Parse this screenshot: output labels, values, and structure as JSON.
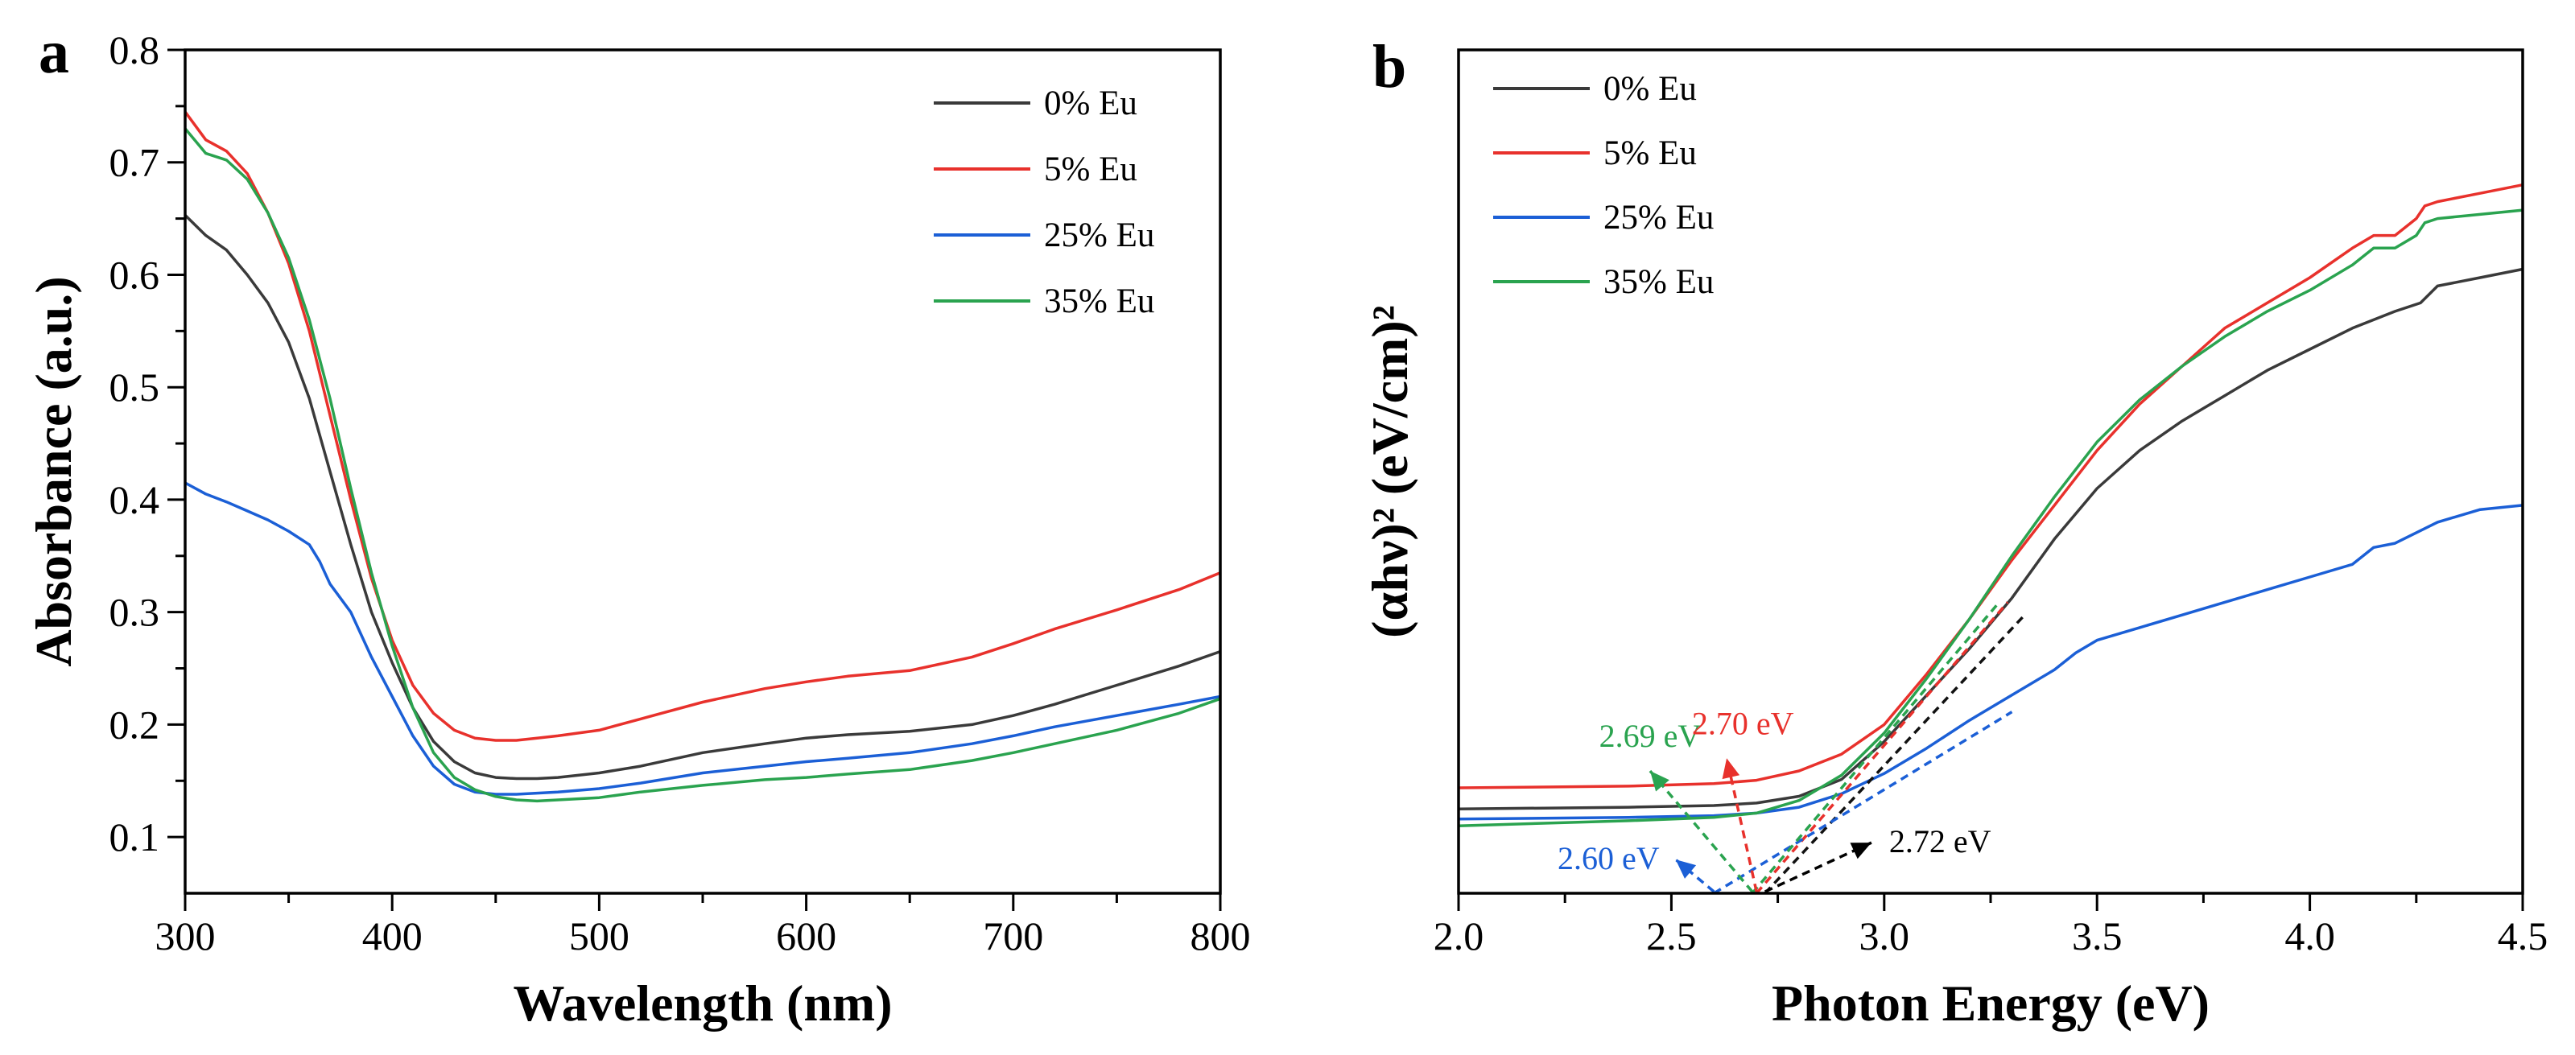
{
  "chart_data": [
    {
      "panel_label": "a",
      "type": "line",
      "xlabel": "Wavelength (nm)",
      "ylabel": "Absorbance (a.u.)",
      "xlim": [
        300,
        800
      ],
      "ylim": [
        0.05,
        0.8
      ],
      "xticks": [
        300,
        400,
        500,
        600,
        700,
        800
      ],
      "xtick_labels": [
        "300",
        "400",
        "500",
        "600",
        "700",
        "800"
      ],
      "yticks": [
        0.1,
        0.2,
        0.3,
        0.4,
        0.5,
        0.6,
        0.7,
        0.8
      ],
      "ytick_labels": [
        "0.1",
        "0.2",
        "0.3",
        "0.4",
        "0.5",
        "0.6",
        "0.7",
        "0.8"
      ],
      "legend_position": "top-right",
      "series": [
        {
          "name": "0% Eu",
          "color": "#3a3a3a",
          "x": [
            300,
            310,
            320,
            330,
            340,
            350,
            360,
            370,
            380,
            390,
            400,
            410,
            420,
            430,
            440,
            450,
            460,
            470,
            480,
            500,
            520,
            550,
            580,
            600,
            620,
            650,
            680,
            700,
            720,
            750,
            780,
            800
          ],
          "y": [
            0.653,
            0.635,
            0.622,
            0.6,
            0.575,
            0.54,
            0.49,
            0.425,
            0.36,
            0.3,
            0.255,
            0.215,
            0.185,
            0.167,
            0.157,
            0.153,
            0.152,
            0.152,
            0.153,
            0.157,
            0.163,
            0.175,
            0.183,
            0.188,
            0.191,
            0.194,
            0.2,
            0.208,
            0.218,
            0.235,
            0.252,
            0.265
          ]
        },
        {
          "name": "5% Eu",
          "color": "#e8312c",
          "x": [
            300,
            310,
            320,
            330,
            340,
            350,
            360,
            370,
            380,
            390,
            400,
            410,
            420,
            430,
            440,
            450,
            460,
            470,
            480,
            500,
            520,
            550,
            580,
            600,
            620,
            650,
            680,
            700,
            720,
            750,
            780,
            800
          ],
          "y": [
            0.745,
            0.72,
            0.71,
            0.69,
            0.655,
            0.61,
            0.55,
            0.475,
            0.4,
            0.33,
            0.275,
            0.235,
            0.21,
            0.195,
            0.188,
            0.186,
            0.186,
            0.188,
            0.19,
            0.195,
            0.205,
            0.22,
            0.232,
            0.238,
            0.243,
            0.248,
            0.26,
            0.272,
            0.285,
            0.302,
            0.32,
            0.335
          ]
        },
        {
          "name": "25% Eu",
          "color": "#1b5fd6",
          "x": [
            300,
            310,
            320,
            330,
            340,
            350,
            360,
            365,
            370,
            380,
            390,
            400,
            410,
            420,
            430,
            440,
            450,
            460,
            470,
            480,
            500,
            520,
            550,
            580,
            600,
            620,
            650,
            680,
            700,
            720,
            750,
            780,
            800
          ],
          "y": [
            0.415,
            0.405,
            0.398,
            0.39,
            0.382,
            0.372,
            0.36,
            0.345,
            0.325,
            0.3,
            0.26,
            0.225,
            0.19,
            0.163,
            0.147,
            0.14,
            0.138,
            0.138,
            0.139,
            0.14,
            0.143,
            0.148,
            0.157,
            0.163,
            0.167,
            0.17,
            0.175,
            0.183,
            0.19,
            0.198,
            0.208,
            0.218,
            0.225
          ]
        },
        {
          "name": "35% Eu",
          "color": "#2aa34f",
          "x": [
            300,
            310,
            320,
            330,
            340,
            350,
            360,
            370,
            380,
            390,
            400,
            410,
            420,
            430,
            440,
            450,
            460,
            470,
            480,
            500,
            520,
            550,
            580,
            600,
            620,
            650,
            680,
            700,
            720,
            750,
            780,
            800
          ],
          "y": [
            0.73,
            0.708,
            0.702,
            0.685,
            0.655,
            0.615,
            0.56,
            0.49,
            0.41,
            0.335,
            0.27,
            0.215,
            0.175,
            0.153,
            0.142,
            0.136,
            0.133,
            0.132,
            0.133,
            0.135,
            0.14,
            0.146,
            0.151,
            0.153,
            0.156,
            0.16,
            0.168,
            0.175,
            0.183,
            0.195,
            0.21,
            0.223
          ]
        }
      ]
    },
    {
      "panel_label": "b",
      "type": "line",
      "xlabel": "Photon Energy (eV)",
      "ylabel": "(αhν)² (eV/cm)²",
      "xlim": [
        2.0,
        4.5
      ],
      "ylim": [
        0,
        1
      ],
      "xticks": [
        2.0,
        2.5,
        3.0,
        3.5,
        4.0,
        4.5
      ],
      "xtick_labels": [
        "2.0",
        "2.5",
        "3.0",
        "3.5",
        "4.0",
        "4.5"
      ],
      "legend_position": "top-left",
      "series": [
        {
          "name": "0% Eu",
          "color": "#3a3a3a",
          "x": [
            2.0,
            2.2,
            2.4,
            2.6,
            2.7,
            2.8,
            2.9,
            3.0,
            3.1,
            3.2,
            3.3,
            3.4,
            3.5,
            3.6,
            3.7,
            3.8,
            3.9,
            4.0,
            4.1,
            4.2,
            4.26,
            4.3,
            4.4,
            4.5
          ],
          "y": [
            0.1,
            0.101,
            0.102,
            0.104,
            0.107,
            0.115,
            0.135,
            0.18,
            0.235,
            0.29,
            0.35,
            0.42,
            0.48,
            0.525,
            0.56,
            0.59,
            0.62,
            0.645,
            0.67,
            0.69,
            0.7,
            0.72,
            0.73,
            0.74
          ]
        },
        {
          "name": "5% Eu",
          "color": "#e8312c",
          "x": [
            2.0,
            2.2,
            2.4,
            2.6,
            2.7,
            2.8,
            2.9,
            3.0,
            3.1,
            3.2,
            3.3,
            3.4,
            3.5,
            3.6,
            3.7,
            3.8,
            3.9,
            4.0,
            4.1,
            4.15,
            4.2,
            4.25,
            4.27,
            4.3,
            4.4,
            4.5
          ],
          "y": [
            0.125,
            0.126,
            0.127,
            0.13,
            0.134,
            0.145,
            0.165,
            0.2,
            0.26,
            0.325,
            0.395,
            0.46,
            0.525,
            0.58,
            0.625,
            0.67,
            0.7,
            0.73,
            0.765,
            0.78,
            0.78,
            0.8,
            0.815,
            0.82,
            0.83,
            0.84
          ]
        },
        {
          "name": "25% Eu",
          "color": "#1b5fd6",
          "x": [
            2.0,
            2.2,
            2.4,
            2.6,
            2.7,
            2.8,
            2.9,
            3.0,
            3.1,
            3.2,
            3.3,
            3.4,
            3.45,
            3.5,
            3.6,
            3.7,
            3.8,
            3.9,
            4.0,
            4.1,
            4.15,
            4.2,
            4.3,
            4.4,
            4.5
          ],
          "y": [
            0.088,
            0.089,
            0.09,
            0.092,
            0.095,
            0.102,
            0.118,
            0.142,
            0.172,
            0.205,
            0.235,
            0.265,
            0.285,
            0.3,
            0.315,
            0.33,
            0.345,
            0.36,
            0.375,
            0.39,
            0.41,
            0.415,
            0.44,
            0.455,
            0.46
          ]
        },
        {
          "name": "35% Eu",
          "color": "#2aa34f",
          "x": [
            2.0,
            2.2,
            2.4,
            2.6,
            2.7,
            2.8,
            2.9,
            3.0,
            3.1,
            3.2,
            3.3,
            3.4,
            3.5,
            3.6,
            3.7,
            3.8,
            3.9,
            4.0,
            4.1,
            4.15,
            4.2,
            4.25,
            4.27,
            4.3,
            4.4,
            4.5
          ],
          "y": [
            0.08,
            0.083,
            0.086,
            0.09,
            0.095,
            0.11,
            0.14,
            0.19,
            0.255,
            0.325,
            0.4,
            0.47,
            0.535,
            0.585,
            0.625,
            0.66,
            0.69,
            0.715,
            0.745,
            0.765,
            0.765,
            0.78,
            0.795,
            0.8,
            0.805,
            0.81
          ]
        }
      ],
      "tangent_lines": [
        {
          "series": "0% Eu",
          "color": "#111111",
          "x": [
            2.72,
            3.33
          ],
          "y": [
            0.0,
            0.33
          ]
        },
        {
          "series": "5% Eu",
          "color": "#e8312c",
          "x": [
            2.7,
            3.29
          ],
          "y": [
            0.0,
            0.345
          ]
        },
        {
          "series": "25% Eu",
          "color": "#1b5fd6",
          "x": [
            2.6,
            3.3
          ],
          "y": [
            0.0,
            0.215
          ]
        },
        {
          "series": "35% Eu",
          "color": "#2aa34f",
          "x": [
            2.69,
            3.27
          ],
          "y": [
            0.0,
            0.345
          ]
        }
      ],
      "annotations": [
        {
          "text": "2.69 eV",
          "color": "#2aa34f",
          "x": 2.69,
          "target_x": 2.45,
          "target_y": 0.145
        },
        {
          "text": "2.70 eV",
          "color": "#e8312c",
          "x": 2.7,
          "target_x": 2.63,
          "target_y": 0.16
        },
        {
          "text": "2.60 eV",
          "color": "#1b5fd6",
          "x": 2.6,
          "target_x": 2.51,
          "target_y": 0.04
        },
        {
          "text": "2.72 eV",
          "color": "#000000",
          "x": 2.72,
          "target_x": 2.97,
          "target_y": 0.06
        }
      ]
    }
  ]
}
